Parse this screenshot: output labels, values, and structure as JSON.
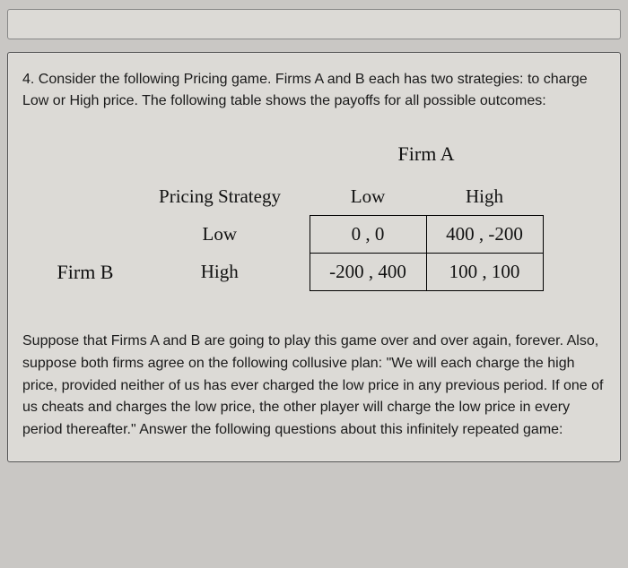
{
  "intro": "4. Consider the following Pricing game. Firms A and B each has two strategies: to charge Low or High price. The following table shows the payoffs for all possible outcomes:",
  "labels": {
    "firmA": "Firm A",
    "firmB": "Firm B",
    "pricingStrategy": "Pricing Strategy",
    "low": "Low",
    "high": "High"
  },
  "payoff": {
    "lowLow": "0 , 0",
    "lowHigh": "400 , -200",
    "highLow": "-200 , 400",
    "highHigh": "100 , 100"
  },
  "follow": "Suppose that Firms A and B are going to play this game over and over again, forever. Also, suppose both firms agree on the following collusive plan: \"We will each charge the high price, provided neither of us has ever charged the low price in any previous period. If one of us cheats and charges the low price, the other player will charge the low price in every period thereafter.\" Answer the following questions about this infinitely repeated game:",
  "colors": {
    "pageBg": "#c9c7c4",
    "panelBg": "#dcdad6",
    "border": "#000000",
    "text": "#1a1a1a"
  },
  "typography": {
    "bodyFont": "sans-serif",
    "tableFont": "Times New Roman serif",
    "introSizePt": 16,
    "tableSizePt": 21,
    "headerSizePt": 22
  },
  "table": {
    "type": "payoff-matrix",
    "rowPlayer": "Firm B",
    "colPlayer": "Firm A",
    "rowStrategies": [
      "Low",
      "High"
    ],
    "colStrategies": [
      "Low",
      "High"
    ],
    "cells": [
      [
        "0 , 0",
        "400 , -200"
      ],
      [
        "-200 , 400",
        "100 , 100"
      ]
    ],
    "cellBorderColor": "#000000",
    "cellPaddingPx": 10
  }
}
